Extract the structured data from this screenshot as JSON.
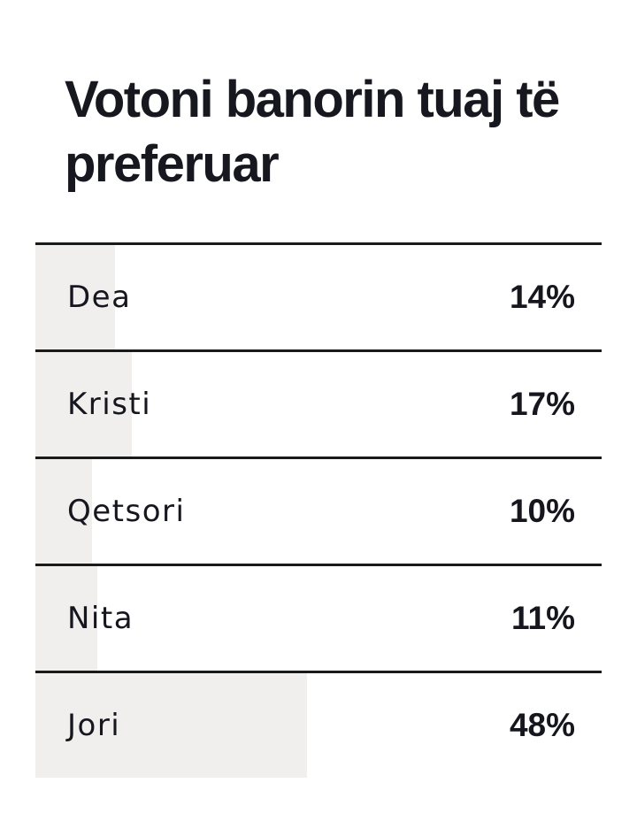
{
  "poll": {
    "title": "Votoni banorin tuaj të preferuar",
    "title_lines": [
      "Votoni banorin tuaj të",
      "preferuar"
    ],
    "options": [
      {
        "label": "Dea",
        "percent": "14%",
        "value": 14
      },
      {
        "label": "Kristi",
        "percent": "17%",
        "value": 17
      },
      {
        "label": "Qetsori",
        "percent": "10%",
        "value": 10
      },
      {
        "label": "Nita",
        "percent": "11%",
        "value": 11
      },
      {
        "label": "Jori",
        "percent": "48%",
        "value": 48
      }
    ],
    "colors": {
      "background": "#ffffff",
      "bar_fill": "#f0efed",
      "separator": "#1a1a1a",
      "text": "#16161e"
    }
  },
  "chart_data": {
    "type": "bar",
    "orientation": "horizontal",
    "title": "Votoni banorin tuaj të preferuar",
    "categories": [
      "Dea",
      "Kristi",
      "Qetsori",
      "Nita",
      "Jori"
    ],
    "values": [
      14,
      17,
      10,
      11,
      48
    ],
    "value_format": "percent",
    "xlim": [
      0,
      100
    ],
    "grid": false,
    "legend": "none"
  }
}
